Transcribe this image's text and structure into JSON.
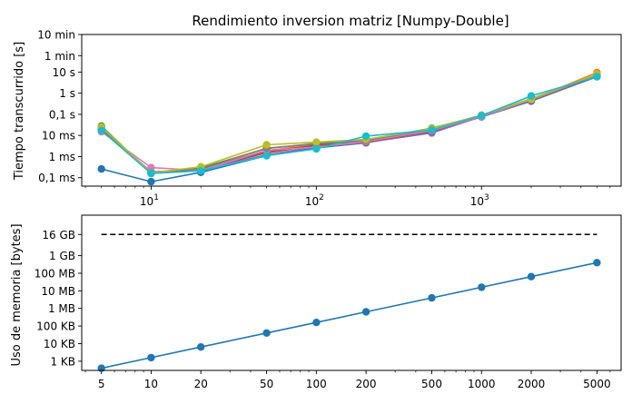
{
  "chart_data": [
    {
      "type": "line",
      "title": "Rendimiento inversion matriz [Numpy-Double]",
      "xlabel": "",
      "ylabel": "Tiempo transcurrido [s]",
      "xscale": "log",
      "yscale": "log",
      "xlim": [
        3.8,
        7000
      ],
      "ylim_seconds": [
        4e-05,
        600
      ],
      "x_ticks": [
        {
          "value": 10,
          "base": "10",
          "exp": "1"
        },
        {
          "value": 100,
          "base": "10",
          "exp": "2"
        },
        {
          "value": 1000,
          "base": "10",
          "exp": "3"
        }
      ],
      "y_ticks": [
        {
          "value": 0.0001,
          "label": "0,1 ms"
        },
        {
          "value": 0.001,
          "label": "1 ms"
        },
        {
          "value": 0.01,
          "label": "10 ms"
        },
        {
          "value": 0.1,
          "label": "0,1 s"
        },
        {
          "value": 1,
          "label": "1 s"
        },
        {
          "value": 10,
          "label": "10 s"
        },
        {
          "value": 60,
          "label": "1 min"
        },
        {
          "value": 600,
          "label": "10 min"
        }
      ],
      "grid": false,
      "x": [
        5,
        10,
        20,
        50,
        100,
        200,
        500,
        1000,
        2000,
        5000
      ],
      "series": [
        {
          "color": "#1f77b4",
          "values": [
            0.00026,
            6.5e-05,
            0.00018,
            0.0011,
            0.0026,
            0.0045,
            0.016,
            0.075,
            0.42,
            6.0
          ]
        },
        {
          "color": "#ff7f0e",
          "values": [
            0.022,
            0.00017,
            0.00027,
            0.0019,
            0.0038,
            0.0055,
            0.019,
            0.085,
            0.5,
            9.5
          ]
        },
        {
          "color": "#2ca02c",
          "values": [
            0.028,
            0.00016,
            0.00029,
            0.0024,
            0.0042,
            0.006,
            0.022,
            0.09,
            0.55,
            7.5
          ]
        },
        {
          "color": "#d62728",
          "values": [
            0.02,
            0.00019,
            0.00024,
            0.0018,
            0.0033,
            0.005,
            0.015,
            0.08,
            0.48,
            6.8
          ]
        },
        {
          "color": "#9467bd",
          "values": [
            0.018,
            0.00018,
            0.00025,
            0.0012,
            0.003,
            0.0046,
            0.013,
            0.078,
            0.46,
            6.4
          ]
        },
        {
          "color": "#8c564b",
          "values": [
            0.02,
            0.00017,
            0.00026,
            0.0015,
            0.0035,
            0.0048,
            0.016,
            0.082,
            0.47,
            6.6
          ]
        },
        {
          "color": "#e377c2",
          "values": [
            0.015,
            0.0003,
            0.00022,
            0.002,
            0.0028,
            0.0052,
            0.017,
            0.079,
            0.49,
            6.9
          ]
        },
        {
          "color": "#7f7f7f",
          "values": [
            0.022,
            0.00018,
            0.00026,
            0.0025,
            0.004,
            0.0058,
            0.02,
            0.088,
            0.52,
            7.2
          ]
        },
        {
          "color": "#bcbd22",
          "values": [
            0.025,
            0.00017,
            0.00033,
            0.0036,
            0.0048,
            0.0065,
            0.021,
            0.092,
            0.53,
            7.8
          ]
        },
        {
          "color": "#17becf",
          "values": [
            0.017,
            0.00016,
            0.00021,
            0.0011,
            0.0023,
            0.0093,
            0.018,
            0.086,
            0.75,
            6.1
          ]
        }
      ]
    },
    {
      "type": "line",
      "title": "",
      "xlabel": "",
      "ylabel": "Uso de memoria [bytes]",
      "xscale": "log",
      "yscale": "log",
      "xlim": [
        3.8,
        7000
      ],
      "ylim_bytes": [
        300,
        200000000000
      ],
      "x_ticks": [
        {
          "value": 5,
          "label": "5"
        },
        {
          "value": 10,
          "label": "10"
        },
        {
          "value": 20,
          "label": "20"
        },
        {
          "value": 50,
          "label": "50"
        },
        {
          "value": 100,
          "label": "100"
        },
        {
          "value": 200,
          "label": "200"
        },
        {
          "value": 500,
          "label": "500"
        },
        {
          "value": 1000,
          "label": "1000"
        },
        {
          "value": 2000,
          "label": "2000"
        },
        {
          "value": 5000,
          "label": "5000"
        }
      ],
      "y_ticks": [
        {
          "value": 1000,
          "label": "1 KB"
        },
        {
          "value": 10000,
          "label": "10 KB"
        },
        {
          "value": 100000,
          "label": "100 KB"
        },
        {
          "value": 1000000,
          "label": "1 MB"
        },
        {
          "value": 10000000,
          "label": "10 MB"
        },
        {
          "value": 100000000,
          "label": "100 MB"
        },
        {
          "value": 1000000000,
          "label": "1 GB"
        },
        {
          "value": 16000000000,
          "label": "16 GB"
        }
      ],
      "grid": false,
      "x": [
        5,
        10,
        20,
        50,
        100,
        200,
        500,
        1000,
        2000,
        5000
      ],
      "series": [
        {
          "color": "#1f77b4",
          "values": [
            400,
            1600,
            6400,
            40000,
            160000,
            640000,
            4000000,
            16000000,
            64000000,
            400000000
          ]
        }
      ],
      "reference_line": {
        "value": 16000000000,
        "color": "#000000",
        "style": "dashed"
      }
    }
  ]
}
